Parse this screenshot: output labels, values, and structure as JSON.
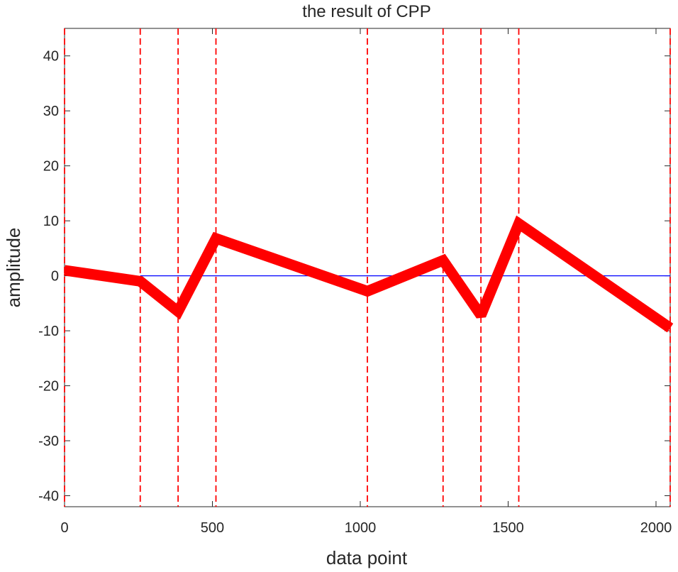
{
  "chart_data": {
    "type": "line",
    "title": "the result of CPP",
    "xlabel": "data point",
    "ylabel": "amplitude",
    "xlim": [
      0,
      2048
    ],
    "ylim": [
      -42,
      45
    ],
    "xticks": [
      0,
      500,
      1000,
      1500,
      2000
    ],
    "yticks": [
      -40,
      -30,
      -20,
      -10,
      0,
      10,
      20,
      30,
      40
    ],
    "grid": false,
    "series": [
      {
        "color": "#ff0000",
        "style": "solid-thick",
        "x": [
          0,
          256,
          384,
          512,
          1024,
          1280,
          1408,
          1536,
          2048
        ],
        "y": [
          1,
          -1,
          -6.5,
          6.8,
          -2.8,
          2.8,
          -7.2,
          9.5,
          -9.5
        ]
      }
    ],
    "reference_lines": {
      "horizontal": {
        "y": 0,
        "x_range": [
          256,
          2048
        ],
        "color": "#0000ff"
      },
      "vertical": {
        "x": [
          0,
          256,
          384,
          512,
          1024,
          1280,
          1408,
          1536,
          2048
        ],
        "color": "#ff0000",
        "style": "dashed"
      }
    }
  }
}
